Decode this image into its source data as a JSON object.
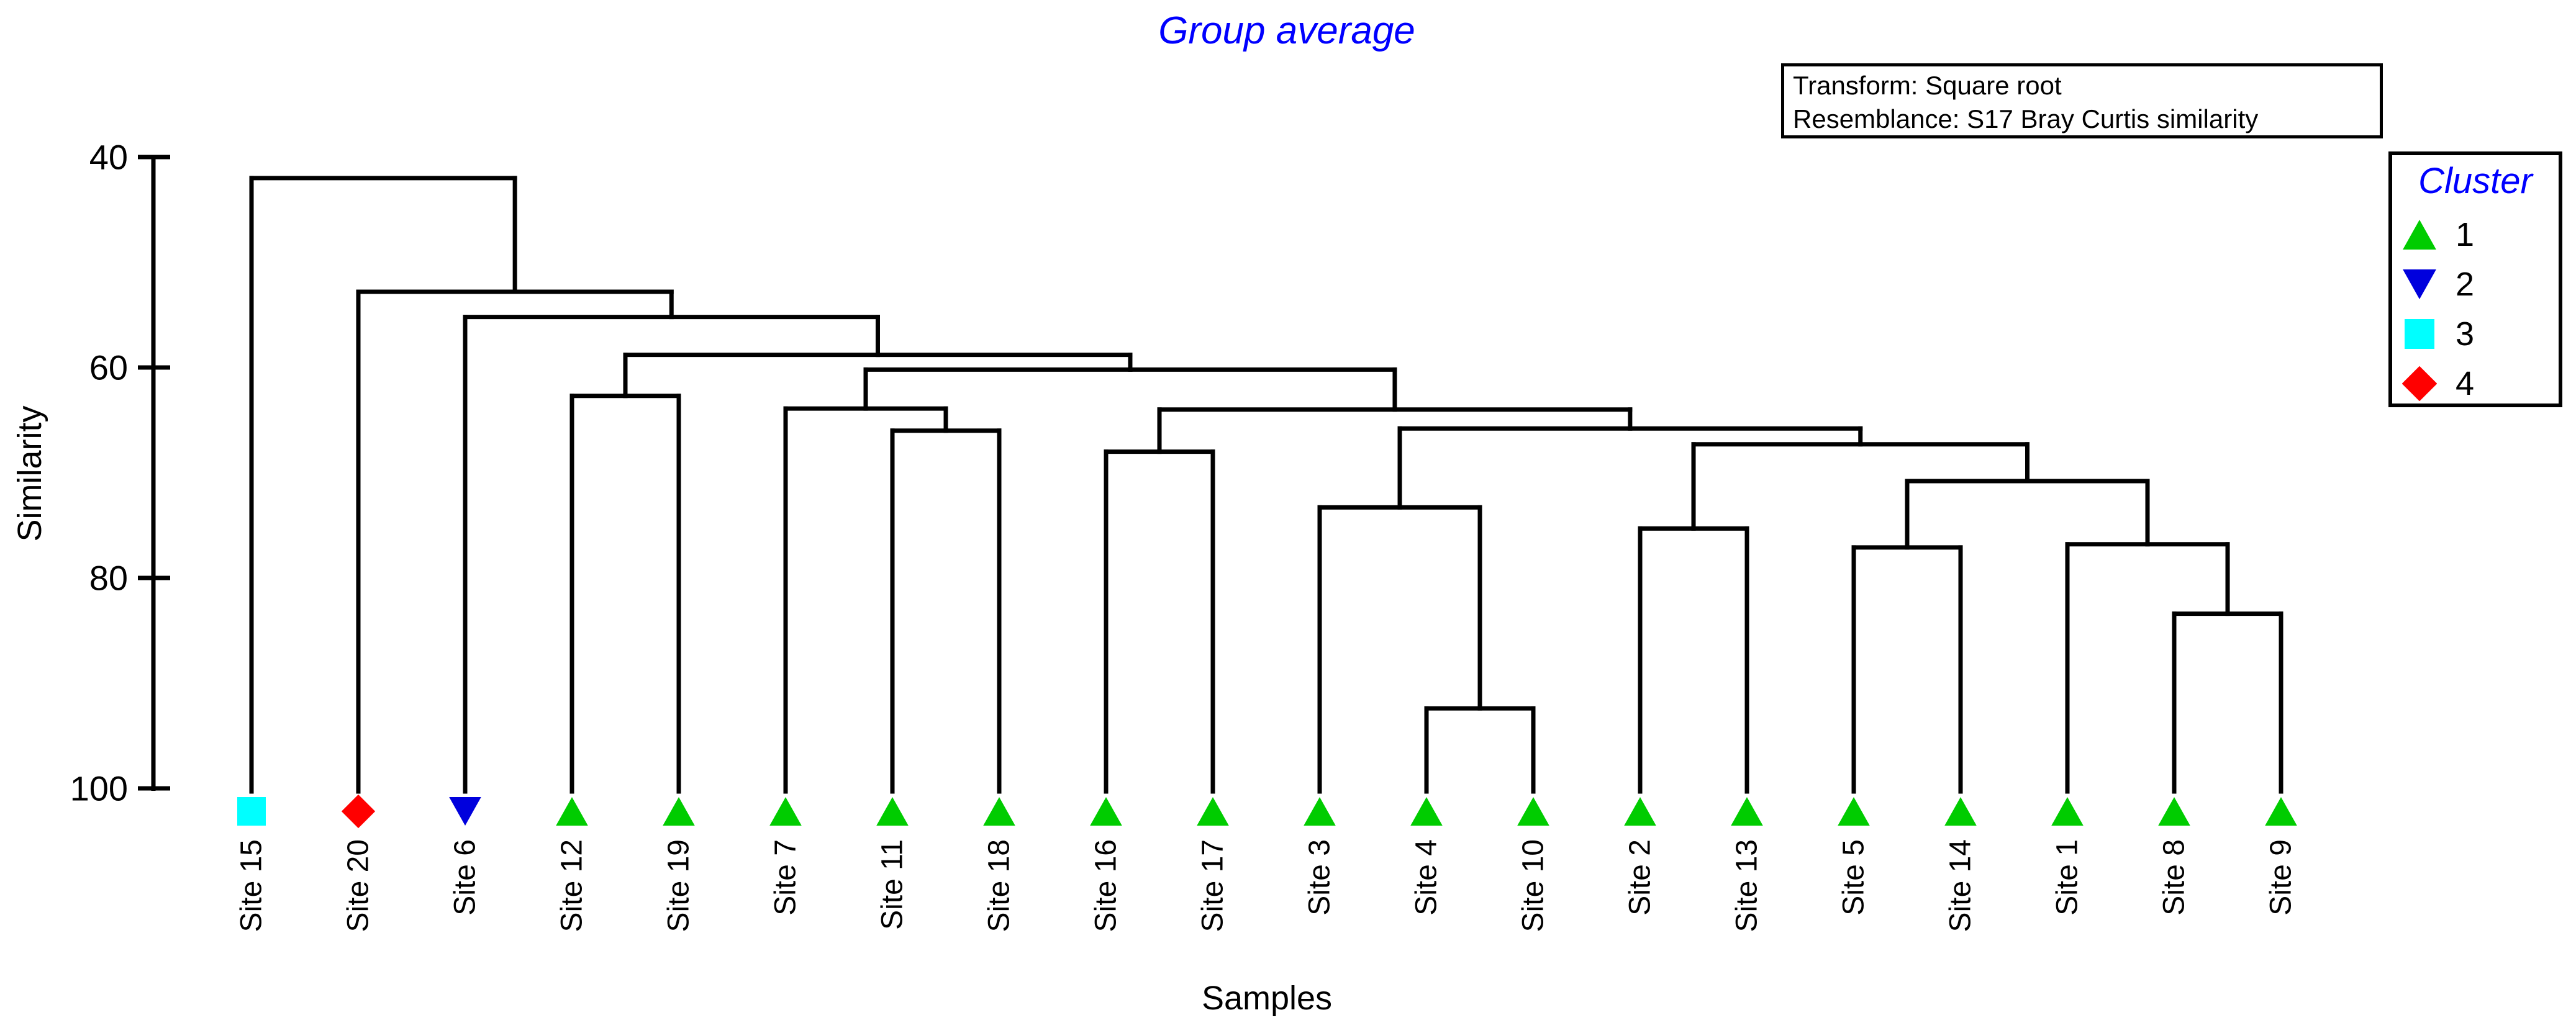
{
  "title": {
    "text": "Group average",
    "color": "#0000ff"
  },
  "info_box": {
    "line1": "Transform: Square root",
    "line2": "Resemblance: S17 Bray Curtis similarity"
  },
  "legend": {
    "title": "Cluster",
    "title_color": "#0000ff",
    "items": [
      {
        "label": "1",
        "shape": "triangle-up",
        "color": "#00cc00"
      },
      {
        "label": "2",
        "shape": "triangle-down",
        "color": "#0000dd"
      },
      {
        "label": "3",
        "shape": "square",
        "color": "#00ffff"
      },
      {
        "label": "4",
        "shape": "diamond",
        "color": "#ff0000"
      }
    ]
  },
  "chart_data": {
    "type": "dendrogram",
    "title": "Group average",
    "xlabel": "Samples",
    "ylabel": "Similarity",
    "y_axis": {
      "min": 40,
      "max": 100,
      "ticks": [
        40,
        60,
        80,
        100
      ],
      "orientation": "similarity decreasing upward, 40 at top"
    },
    "line_color": "#000000",
    "leaves": [
      {
        "label": "Site 15",
        "cluster": 3
      },
      {
        "label": "Site 20",
        "cluster": 4
      },
      {
        "label": "Site 6",
        "cluster": 2
      },
      {
        "label": "Site 12",
        "cluster": 1
      },
      {
        "label": "Site 19",
        "cluster": 1
      },
      {
        "label": "Site 7",
        "cluster": 1
      },
      {
        "label": "Site 11",
        "cluster": 1
      },
      {
        "label": "Site 18",
        "cluster": 1
      },
      {
        "label": "Site 16",
        "cluster": 1
      },
      {
        "label": "Site 17",
        "cluster": 1
      },
      {
        "label": "Site 3",
        "cluster": 1
      },
      {
        "label": "Site 4",
        "cluster": 1
      },
      {
        "label": "Site 10",
        "cluster": 1
      },
      {
        "label": "Site 2",
        "cluster": 1
      },
      {
        "label": "Site 13",
        "cluster": 1
      },
      {
        "label": "Site 5",
        "cluster": 1
      },
      {
        "label": "Site 14",
        "cluster": 1
      },
      {
        "label": "Site 1",
        "cluster": 1
      },
      {
        "label": "Site 8",
        "cluster": 1
      },
      {
        "label": "Site 9",
        "cluster": 1
      }
    ],
    "cluster_symbols": {
      "1": {
        "shape": "triangle-up",
        "color": "#00cc00"
      },
      "2": {
        "shape": "triangle-down",
        "color": "#0000dd"
      },
      "3": {
        "shape": "square",
        "color": "#00ffff"
      },
      "4": {
        "shape": "diamond",
        "color": "#ff0000"
      }
    },
    "tree": {
      "sim": 42.0,
      "children": [
        "Site 15",
        {
          "sim": 52.8,
          "children": [
            "Site 20",
            {
              "sim": 55.2,
              "children": [
                "Site 6",
                {
                  "sim": 58.8,
                  "children": [
                    {
                      "sim": 62.7,
                      "children": [
                        "Site 12",
                        "Site 19"
                      ]
                    },
                    {
                      "sim": 60.2,
                      "children": [
                        {
                          "sim": 63.9,
                          "children": [
                            "Site 7",
                            {
                              "sim": 66.0,
                              "children": [
                                "Site 11",
                                "Site 18"
                              ]
                            }
                          ]
                        },
                        {
                          "sim": 64.0,
                          "children": [
                            {
                              "sim": 68.0,
                              "children": [
                                "Site 16",
                                "Site 17"
                              ]
                            },
                            {
                              "sim": 65.8,
                              "children": [
                                {
                                  "sim": 73.3,
                                  "children": [
                                    "Site 3",
                                    {
                                      "sim": 92.4,
                                      "children": [
                                        "Site 4",
                                        "Site 10"
                                      ]
                                    }
                                  ]
                                },
                                {
                                  "sim": 67.3,
                                  "children": [
                                    {
                                      "sim": 75.3,
                                      "children": [
                                        "Site 2",
                                        "Site 13"
                                      ]
                                    },
                                    {
                                      "sim": 70.8,
                                      "children": [
                                        {
                                          "sim": 77.1,
                                          "children": [
                                            "Site 5",
                                            "Site 14"
                                          ]
                                        },
                                        {
                                          "sim": 76.8,
                                          "children": [
                                            "Site 1",
                                            {
                                              "sim": 83.4,
                                              "children": [
                                                "Site 8",
                                                "Site 9"
                                              ]
                                            }
                                          ]
                                        }
                                      ]
                                    }
                                  ]
                                }
                              ]
                            }
                          ]
                        }
                      ]
                    }
                  ]
                }
              ]
            }
          ]
        }
      ]
    }
  }
}
